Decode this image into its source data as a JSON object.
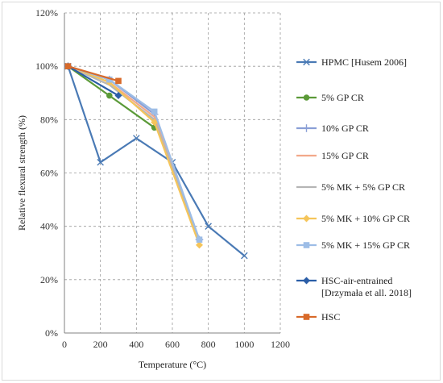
{
  "chart_data": {
    "type": "line",
    "title": "",
    "xlabel": "Temperature (°C)",
    "ylabel": "Relative flexural strength (%)",
    "xlim": [
      0,
      1200
    ],
    "ylim": [
      0,
      120
    ],
    "x_ticks": [
      "0",
      "200",
      "400",
      "600",
      "800",
      "1000",
      "1200"
    ],
    "y_ticks": [
      "0%",
      "20%",
      "40%",
      "60%",
      "80%",
      "100%",
      "120%"
    ],
    "grid": "dashed",
    "legend_position": "right",
    "series": [
      {
        "name": "HPMC [Husem 2006]",
        "color": "#4a7ab5",
        "marker": "x",
        "x": [
          20,
          200,
          400,
          600,
          800,
          1000
        ],
        "y": [
          100,
          64,
          73,
          64,
          40,
          29
        ]
      },
      {
        "name": "5% GP CR",
        "color": "#5b9a38",
        "marker": "circle",
        "x": [
          20,
          250,
          500
        ],
        "y": [
          100,
          89,
          77
        ]
      },
      {
        "name": "10% GP CR",
        "color": "#8a9fd6",
        "marker": "plus",
        "x": [
          20,
          250,
          500,
          750
        ],
        "y": [
          100,
          95,
          82,
          35
        ]
      },
      {
        "name": "15% GP CR",
        "color": "#f2a98a",
        "marker": "none",
        "x": [
          20,
          250,
          500,
          750
        ],
        "y": [
          100,
          94,
          81,
          34
        ]
      },
      {
        "name": "5% MK + 5% GP CR",
        "color": "#b5b5b5",
        "marker": "none",
        "x": [
          20,
          250,
          500,
          750
        ],
        "y": [
          100,
          93,
          80,
          34
        ]
      },
      {
        "name": "5% MK + 10% GP CR",
        "color": "#f5c55a",
        "marker": "diamond",
        "x": [
          20,
          250,
          500,
          750
        ],
        "y": [
          100,
          94,
          79,
          33
        ]
      },
      {
        "name": "5% MK + 15% GP CR",
        "color": "#9dbde6",
        "marker": "square",
        "x": [
          20,
          250,
          500,
          750
        ],
        "y": [
          100,
          95,
          83,
          35
        ]
      },
      {
        "name": "HSC-air-entrained\n[Drzymała et all. 2018]",
        "color": "#2b5ea7",
        "marker": "diamond",
        "x": [
          20,
          300
        ],
        "y": [
          100,
          89
        ]
      },
      {
        "name": "HSC",
        "color": "#d86a2a",
        "marker": "square",
        "x": [
          20,
          300
        ],
        "y": [
          100,
          94.5
        ]
      }
    ]
  }
}
